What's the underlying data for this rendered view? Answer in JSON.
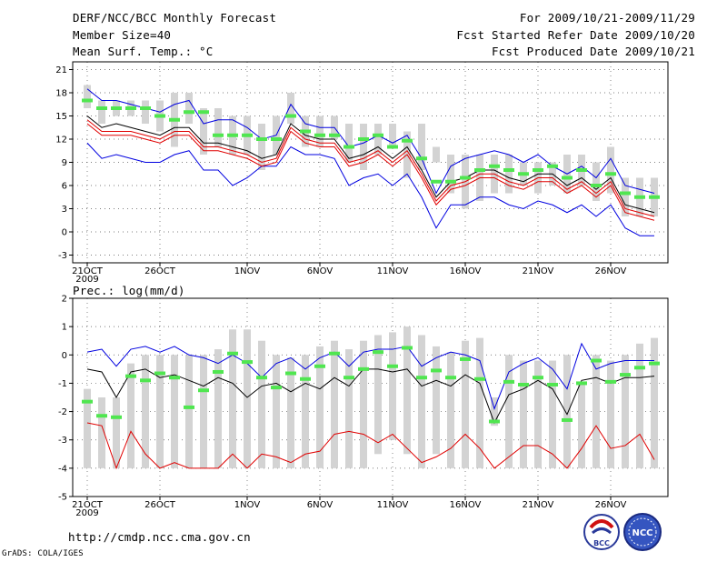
{
  "header": {
    "title": "DERF/NCC/BCC Monthly Forecast",
    "member_size": "Member Size=40",
    "variable": "Mean Surf. Temp.: °C",
    "period": "For 2009/10/21-2009/11/29",
    "started": "Fcst Started Refer Date 2009/10/20",
    "produced": "Fcst Produced Date 2009/10/21"
  },
  "footer": {
    "url": "http://cmdp.ncc.cma.gov.cn",
    "credit": "GrADS: COLA/IGES",
    "logo_bcc": "BCC",
    "logo_ncc": "NCC"
  },
  "colors": {
    "box": "#d3d3d3",
    "median": "#50e650",
    "mean": "#000000",
    "spread": "#e00000",
    "extreme": "#0000e0"
  },
  "chart_data": [
    {
      "type": "box",
      "title": "Mean Surf. Temp.: °C",
      "ylabel": "°C",
      "ylim": [
        -4,
        22
      ],
      "yticks": [
        -3,
        0,
        3,
        6,
        9,
        12,
        15,
        18,
        21
      ],
      "x_ticks": [
        {
          "day": 1,
          "label": "21OCT",
          "sub": "2009"
        },
        {
          "day": 6,
          "label": "26OCT",
          "sub": ""
        },
        {
          "day": 12,
          "label": "1NOV",
          "sub": ""
        },
        {
          "day": 17,
          "label": "6NOV",
          "sub": ""
        },
        {
          "day": 22,
          "label": "11NOV",
          "sub": ""
        },
        {
          "day": 27,
          "label": "16NOV",
          "sub": ""
        },
        {
          "day": 32,
          "label": "21NOV",
          "sub": ""
        },
        {
          "day": 37,
          "label": "26NOV",
          "sub": ""
        }
      ],
      "days": 40,
      "box_low": [
        16,
        14,
        15,
        15,
        14,
        13,
        11,
        14,
        10,
        11,
        10,
        10,
        8,
        10,
        14,
        11,
        11,
        12,
        9,
        8,
        10,
        11,
        7,
        8,
        9,
        5,
        3,
        4,
        5,
        5,
        6,
        5,
        6,
        5,
        6,
        4,
        5,
        2,
        2,
        2
      ],
      "box_high": [
        19,
        17,
        17,
        17,
        17,
        17,
        18,
        18,
        16,
        16,
        15,
        15,
        14,
        15,
        18,
        15,
        15,
        15,
        14,
        14,
        14,
        14,
        13,
        14,
        11,
        10,
        10,
        10,
        10,
        10,
        9,
        9,
        9,
        10,
        10,
        9,
        11,
        7,
        7,
        7
      ],
      "median": [
        17,
        16,
        16,
        16,
        16,
        15,
        14.5,
        15.5,
        15.5,
        12.5,
        12.5,
        12.5,
        12,
        12,
        15,
        13,
        12.5,
        12.5,
        11,
        12,
        12.5,
        11,
        11.8,
        9.5,
        6.5,
        6.5,
        7,
        8,
        8.5,
        8,
        7.5,
        8,
        8.5,
        7,
        8,
        6,
        7.5,
        5,
        4.5,
        4.5
      ],
      "max": [
        18.5,
        17,
        17,
        16.5,
        16,
        15.5,
        16.5,
        17,
        14,
        14.5,
        14.5,
        13.5,
        12,
        12.5,
        16.5,
        14,
        13.5,
        13.5,
        11,
        11.5,
        12.5,
        11.5,
        12.5,
        9.5,
        5,
        8.5,
        9.5,
        10,
        10.5,
        10,
        9,
        10,
        8.5,
        7.5,
        8.5,
        7,
        9.5,
        6,
        5.5,
        5
      ],
      "mean": [
        15,
        13.5,
        14,
        13.5,
        13,
        12.5,
        13.5,
        13.5,
        11.5,
        11.5,
        11,
        10.5,
        9.5,
        10,
        14,
        12.5,
        12,
        12,
        9.5,
        10,
        11,
        9.5,
        11,
        8,
        4.5,
        6.5,
        7,
        8,
        8,
        7,
        6.5,
        7.5,
        7.5,
        6,
        7,
        5.5,
        7,
        3.5,
        3,
        2.5
      ],
      "spread_hi": [
        14.5,
        13,
        13,
        13,
        12.5,
        12,
        13,
        13,
        11,
        11,
        10.5,
        10,
        9,
        9.5,
        13.5,
        12,
        11.5,
        11.5,
        9,
        9.5,
        10.5,
        9,
        10.5,
        7.5,
        4,
        6,
        6.5,
        7.5,
        7.5,
        6.5,
        6,
        7,
        7,
        5.5,
        6.5,
        5,
        6.5,
        3,
        2.5,
        2
      ],
      "spread_lo": [
        14,
        12.5,
        12.5,
        12.5,
        12,
        11.5,
        12.5,
        12.5,
        10.5,
        10.5,
        10,
        9.5,
        8.5,
        9,
        13,
        11.5,
        11,
        11,
        8.5,
        9,
        10,
        8.5,
        10,
        7,
        3.5,
        5.5,
        6,
        7,
        7,
        6,
        5.5,
        6.5,
        6.5,
        5,
        6,
        4.5,
        6,
        2.5,
        2,
        1.5
      ],
      "min": [
        11.5,
        9.5,
        10,
        9.5,
        9,
        9,
        10,
        10.5,
        8,
        8,
        6,
        7,
        8.5,
        8.5,
        11,
        10,
        10,
        9.5,
        6,
        7,
        7.5,
        6,
        7.5,
        4.5,
        0.5,
        3.5,
        3.5,
        4.5,
        4.5,
        3.5,
        3,
        4,
        3.5,
        2.5,
        3.5,
        2,
        3.5,
        0.5,
        -0.5,
        -0.5
      ]
    },
    {
      "type": "box",
      "title": "Prec.: log(mm/d)",
      "ylabel": "log(mm/d)",
      "ylim": [
        -5,
        2
      ],
      "yticks": [
        -5,
        -4,
        -3,
        -2,
        -1,
        0,
        1,
        2
      ],
      "x_ticks": [
        {
          "day": 1,
          "label": "21OCT",
          "sub": "2009"
        },
        {
          "day": 6,
          "label": "26OCT",
          "sub": ""
        },
        {
          "day": 12,
          "label": "1NOV",
          "sub": ""
        },
        {
          "day": 17,
          "label": "6NOV",
          "sub": ""
        },
        {
          "day": 22,
          "label": "11NOV",
          "sub": ""
        },
        {
          "day": 27,
          "label": "16NOV",
          "sub": ""
        },
        {
          "day": 32,
          "label": "21NOV",
          "sub": ""
        },
        {
          "day": 37,
          "label": "26NOV",
          "sub": ""
        }
      ],
      "days": 40,
      "box_low": [
        -4,
        -4,
        -4,
        -4,
        -4,
        -4,
        -4,
        -4,
        -4,
        -4,
        -4,
        -4,
        -4,
        -4,
        -4,
        -4,
        -4,
        -4,
        -4,
        -4,
        -3.5,
        -3,
        -3.5,
        -4,
        -3.5,
        -4,
        -4,
        -4,
        -2.5,
        -4,
        -4,
        -4,
        -4,
        -4,
        -4,
        -4,
        -4,
        -4,
        -4,
        -4
      ],
      "box_high": [
        -1.2,
        -1.5,
        -1.5,
        -0.3,
        0,
        0,
        0,
        0,
        0,
        0.2,
        0.9,
        0.9,
        0.5,
        0,
        -0.1,
        0,
        0.3,
        0.5,
        0.2,
        0.5,
        0.7,
        0.8,
        1,
        0.7,
        0.3,
        0.1,
        0.5,
        0.6,
        -1.5,
        0,
        -0.2,
        -0.2,
        -0.2,
        0,
        -1,
        0,
        -0.2,
        0,
        0.4,
        0.6
      ],
      "median": [
        -1.65,
        -2.15,
        -2.2,
        -0.75,
        -0.9,
        -0.65,
        -0.8,
        -1.85,
        -1.25,
        -0.6,
        0.05,
        -0.25,
        -0.8,
        -1.15,
        -0.65,
        -0.85,
        -0.4,
        0.05,
        -0.8,
        -0.5,
        0.1,
        -0.4,
        0.25,
        -0.8,
        -0.55,
        -0.8,
        -0.15,
        -0.85,
        -2.35,
        -0.95,
        -1.05,
        -0.8,
        -1.05,
        -2.3,
        -1.0,
        -0.2,
        -0.95,
        -0.7,
        -0.45,
        -0.3
      ],
      "max": [
        0.1,
        0.2,
        -0.4,
        0.2,
        0.3,
        0.1,
        0.3,
        0,
        -0.1,
        -0.3,
        0,
        -0.3,
        -0.8,
        -0.3,
        -0.1,
        -0.5,
        -0.1,
        0.1,
        -0.4,
        0.1,
        0.2,
        0.2,
        0.3,
        -0.4,
        -0.1,
        0.1,
        0,
        -0.2,
        -1.9,
        -0.6,
        -0.3,
        -0.1,
        -0.5,
        -1.2,
        0.4,
        -0.5,
        -0.3,
        -0.2,
        -0.2,
        -0.2
      ],
      "mean": [
        -0.5,
        -0.6,
        -1.5,
        -0.6,
        -0.5,
        -0.8,
        -0.7,
        -0.9,
        -1.1,
        -0.8,
        -1.0,
        -1.5,
        -1.1,
        -1.0,
        -1.3,
        -1.0,
        -1.2,
        -0.8,
        -1.1,
        -0.5,
        -0.5,
        -0.6,
        -0.5,
        -1.1,
        -0.9,
        -1.1,
        -0.7,
        -1.0,
        -2.4,
        -1.4,
        -1.2,
        -0.9,
        -1.2,
        -2.1,
        -0.9,
        -0.8,
        -1.0,
        -0.8,
        -0.8,
        -0.75
      ],
      "min": [
        -2.4,
        -2.5,
        -4.0,
        -2.7,
        -3.5,
        -4.0,
        -3.8,
        -4.0,
        -4.0,
        -4.0,
        -3.5,
        -4.0,
        -3.5,
        -3.6,
        -3.8,
        -3.5,
        -3.4,
        -2.8,
        -2.7,
        -2.8,
        -3.1,
        -2.8,
        -3.3,
        -3.8,
        -3.6,
        -3.3,
        -2.8,
        -3.3,
        -4.0,
        -3.6,
        -3.2,
        -3.2,
        -3.5,
        -4.0,
        -3.3,
        -2.5,
        -3.3,
        -3.2,
        -2.8,
        -3.7
      ]
    }
  ]
}
